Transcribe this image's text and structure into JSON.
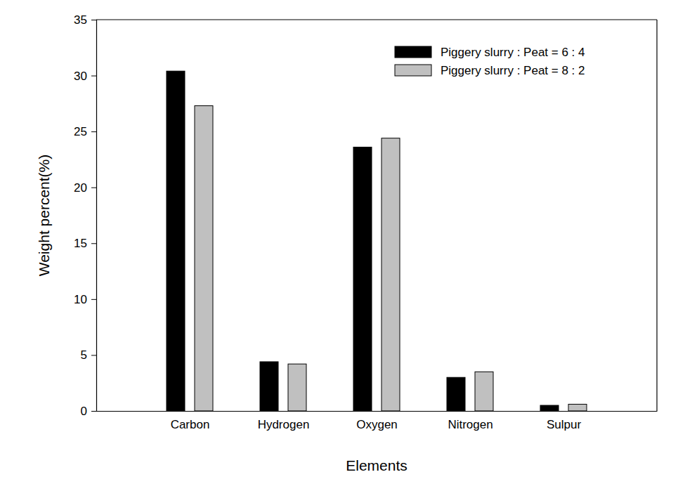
{
  "chart_data": {
    "type": "bar",
    "x_label": "Elements",
    "y_label": "Weight percent(%)",
    "categories": [
      "Carbon",
      "Hydrogen",
      "Oxygen",
      "Nitrogen",
      "Sulpur"
    ],
    "series": [
      {
        "name": "Piggery slurry : Peat = 6 : 4",
        "color": "#000000",
        "values": [
          30.4,
          4.4,
          23.6,
          3.0,
          0.5
        ]
      },
      {
        "name": "Piggery slurry : Peat = 8 : 2",
        "color": "#c0c0c0",
        "values": [
          27.3,
          4.2,
          24.4,
          3.5,
          0.6
        ]
      }
    ],
    "ylim": [
      0,
      35
    ],
    "yticks": [
      0,
      5,
      10,
      15,
      20,
      25,
      30,
      35
    ],
    "grid": false,
    "legend": "top-right"
  }
}
